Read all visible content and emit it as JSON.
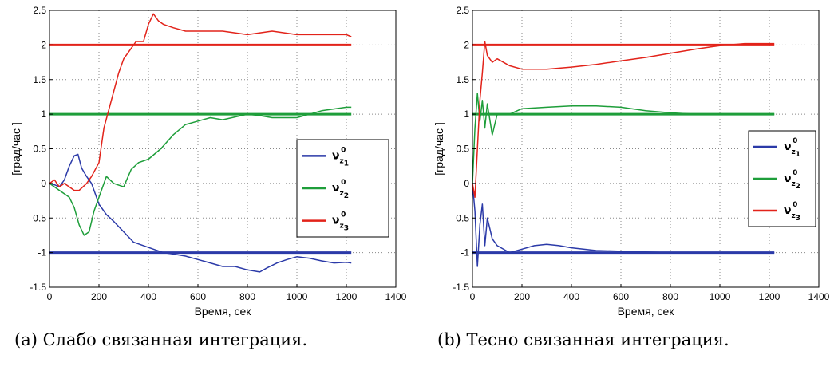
{
  "chart_data": [
    {
      "type": "line",
      "caption": "(a) Слабо связанная интеграция.",
      "xlabel": "Время, сек",
      "ylabel": "[град/час ]",
      "xlim": [
        0,
        1400
      ],
      "ylim": [
        -1.5,
        2.5
      ],
      "xticks": [
        0,
        200,
        400,
        600,
        800,
        1000,
        1200,
        1400
      ],
      "yticks": [
        -1.5,
        -1,
        -0.5,
        0,
        0.5,
        1,
        1.5,
        2,
        2.5
      ],
      "xtick_labels": [
        "0",
        "200",
        "400",
        "600",
        "800",
        "1000",
        "1200",
        "1400"
      ],
      "ytick_labels": [
        "-1.5",
        "-1",
        "-0.5",
        "0",
        "0.5",
        "1",
        "1.5",
        "2",
        "2.5"
      ],
      "grid": true,
      "legend_position": "right-middle",
      "series": [
        {
          "name": "ν_z1^0",
          "color": "#2b3aa8",
          "x": [
            0,
            20,
            40,
            60,
            80,
            100,
            115,
            130,
            150,
            170,
            200,
            230,
            260,
            300,
            340,
            380,
            420,
            460,
            500,
            550,
            600,
            650,
            700,
            750,
            800,
            850,
            880,
            920,
            960,
            1000,
            1050,
            1100,
            1150,
            1200,
            1220
          ],
          "y": [
            0,
            -0.02,
            -0.05,
            0.05,
            0.25,
            0.4,
            0.42,
            0.22,
            0.1,
            0.0,
            -0.3,
            -0.45,
            -0.55,
            -0.7,
            -0.85,
            -0.9,
            -0.95,
            -1.0,
            -1.02,
            -1.05,
            -1.1,
            -1.15,
            -1.2,
            -1.2,
            -1.25,
            -1.28,
            -1.22,
            -1.15,
            -1.1,
            -1.06,
            -1.08,
            -1.12,
            -1.15,
            -1.14,
            -1.15
          ],
          "reference": -1
        },
        {
          "name": "ν_z2^0",
          "color": "#1e9e3a",
          "x": [
            0,
            20,
            40,
            60,
            80,
            100,
            120,
            140,
            160,
            180,
            200,
            230,
            260,
            300,
            330,
            360,
            400,
            450,
            500,
            550,
            600,
            650,
            700,
            800,
            850,
            900,
            1000,
            1100,
            1200,
            1220
          ],
          "y": [
            0,
            -0.05,
            -0.1,
            -0.15,
            -0.2,
            -0.35,
            -0.6,
            -0.75,
            -0.7,
            -0.4,
            -0.2,
            0.1,
            0.0,
            -0.05,
            0.2,
            0.3,
            0.35,
            0.5,
            0.7,
            0.85,
            0.9,
            0.95,
            0.92,
            1.0,
            0.98,
            0.95,
            0.95,
            1.05,
            1.1,
            1.1
          ],
          "reference": 1
        },
        {
          "name": "ν_z3^0",
          "color": "#e2231a",
          "x": [
            0,
            20,
            40,
            60,
            80,
            100,
            120,
            150,
            170,
            200,
            220,
            250,
            280,
            300,
            330,
            350,
            380,
            400,
            420,
            440,
            460,
            500,
            550,
            600,
            700,
            800,
            900,
            1000,
            1100,
            1200,
            1220
          ],
          "y": [
            0,
            0.05,
            -0.05,
            0.0,
            -0.05,
            -0.1,
            -0.1,
            0.0,
            0.1,
            0.3,
            0.8,
            1.2,
            1.6,
            1.8,
            1.95,
            2.05,
            2.05,
            2.3,
            2.45,
            2.35,
            2.3,
            2.25,
            2.2,
            2.2,
            2.2,
            2.15,
            2.2,
            2.15,
            2.15,
            2.15,
            2.12
          ],
          "reference": 2
        }
      ]
    },
    {
      "type": "line",
      "caption": "(b) Тесно связанная интеграция.",
      "xlabel": "Время, сек",
      "ylabel": "[град/час ]",
      "xlim": [
        0,
        1400
      ],
      "ylim": [
        -1.5,
        2.5
      ],
      "xticks": [
        0,
        200,
        400,
        600,
        800,
        1000,
        1200,
        1400
      ],
      "yticks": [
        -1.5,
        -1,
        -0.5,
        0,
        0.5,
        1,
        1.5,
        2,
        2.5
      ],
      "xtick_labels": [
        "0",
        "200",
        "400",
        "600",
        "800",
        "1000",
        "1200",
        "1400"
      ],
      "ytick_labels": [
        "-1.5",
        "-1",
        "-0.5",
        "0",
        "0.5",
        "1",
        "1.5",
        "2",
        "2.5"
      ],
      "grid": true,
      "legend_position": "right-middle",
      "series": [
        {
          "name": "ν_z1^0",
          "color": "#2b3aa8",
          "x": [
            0,
            10,
            20,
            30,
            40,
            50,
            60,
            80,
            100,
            150,
            200,
            250,
            300,
            350,
            400,
            500,
            600,
            700,
            800,
            900,
            1000,
            1100,
            1200,
            1220
          ],
          "y": [
            0,
            -0.4,
            -1.2,
            -0.6,
            -0.3,
            -0.9,
            -0.5,
            -0.8,
            -0.9,
            -1.0,
            -0.95,
            -0.9,
            -0.88,
            -0.9,
            -0.93,
            -0.97,
            -0.98,
            -0.99,
            -1.0,
            -1.0,
            -1.0,
            -1.0,
            -1.0,
            -1.0
          ],
          "reference": -1
        },
        {
          "name": "ν_z2^0",
          "color": "#1e9e3a",
          "x": [
            0,
            10,
            20,
            30,
            40,
            50,
            60,
            80,
            100,
            150,
            200,
            300,
            400,
            500,
            600,
            700,
            800,
            900,
            1000,
            1100,
            1200,
            1220
          ],
          "y": [
            0,
            0.8,
            1.3,
            0.9,
            1.2,
            0.8,
            1.15,
            0.7,
            1.0,
            1.0,
            1.08,
            1.1,
            1.12,
            1.12,
            1.1,
            1.05,
            1.02,
            1.0,
            1.0,
            1.0,
            1.0,
            1.0
          ],
          "reference": 1
        },
        {
          "name": "ν_z3^0",
          "color": "#e2231a",
          "x": [
            0,
            10,
            20,
            30,
            40,
            50,
            60,
            80,
            100,
            150,
            200,
            300,
            400,
            500,
            600,
            700,
            800,
            900,
            1000,
            1100,
            1200,
            1220
          ],
          "y": [
            0,
            -0.2,
            0.5,
            1.2,
            1.6,
            2.05,
            1.85,
            1.75,
            1.8,
            1.7,
            1.65,
            1.65,
            1.68,
            1.72,
            1.77,
            1.82,
            1.88,
            1.94,
            1.99,
            2.02,
            2.02,
            2.02
          ],
          "reference": 2
        }
      ]
    }
  ]
}
